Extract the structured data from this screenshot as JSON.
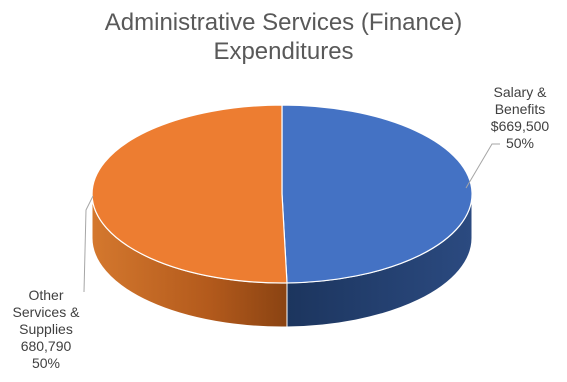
{
  "chart_data": {
    "type": "pie",
    "title_lines": [
      "Administrative Services (Finance)",
      "Expenditures"
    ],
    "slices": [
      {
        "label_lines": [
          "Salary &",
          "Benefits"
        ],
        "value_text": "$669,500",
        "percent_text": "50%",
        "value": 669500,
        "color": "#4472C4",
        "side_color": "#1F3864"
      },
      {
        "label_lines": [
          "Other",
          "Services &",
          "Supplies"
        ],
        "value_text": "680,790",
        "percent_text": "50%",
        "value": 680790,
        "color": "#ED7D31",
        "side_color": "#C55A11"
      }
    ],
    "style": "3d-pie",
    "legend": "none"
  }
}
